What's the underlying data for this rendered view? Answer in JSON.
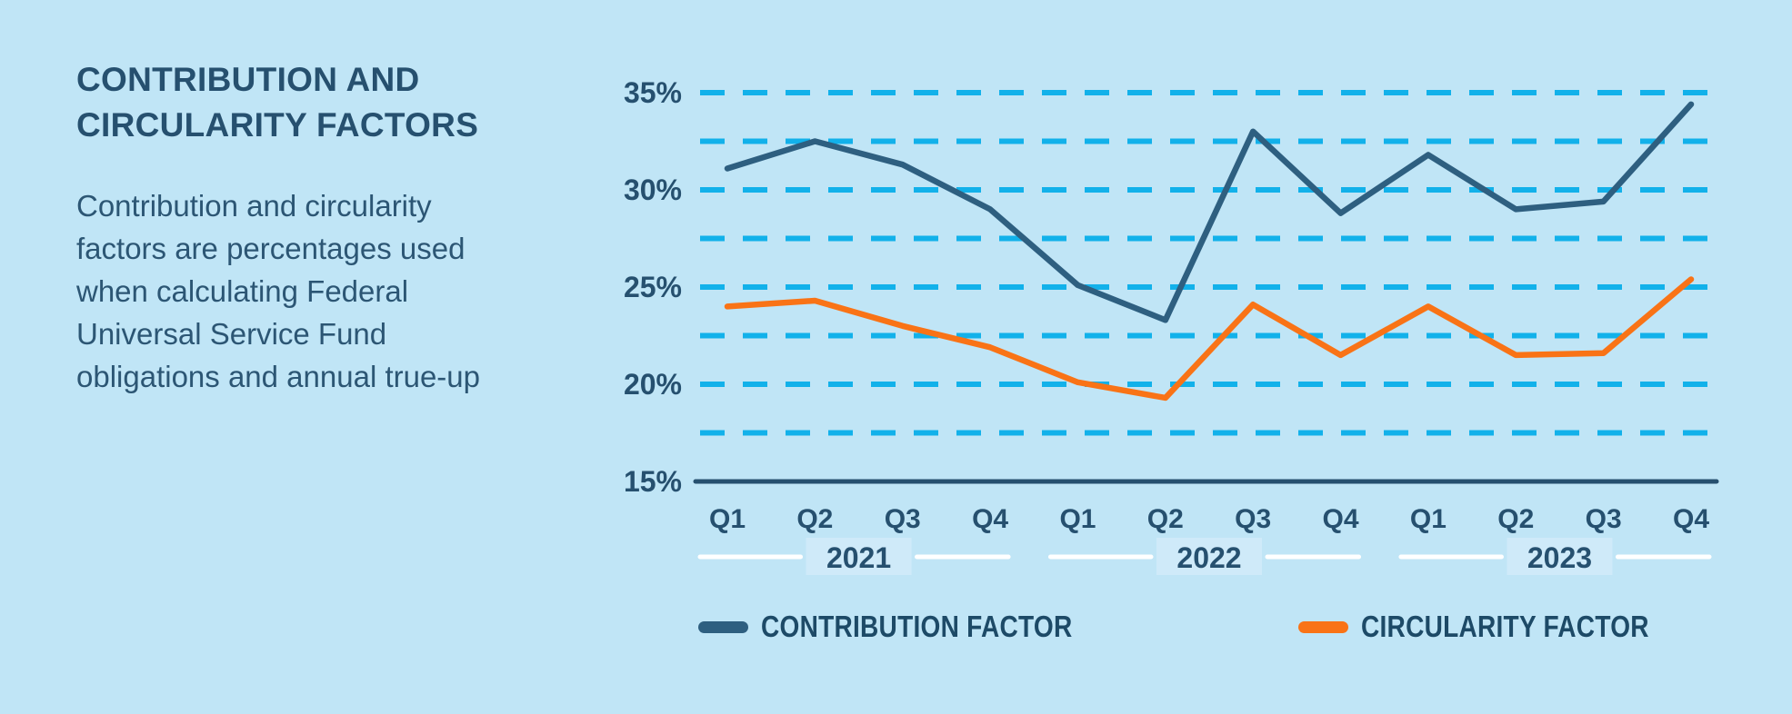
{
  "page": {
    "background": "#c0e5f6"
  },
  "panel": {
    "title_line1": "CONTRIBUTION AND",
    "title_line2": "CIRCULARITY FACTORS",
    "description_lines": [
      "Contribution and circularity",
      "factors are percentages used",
      "when calculating Federal",
      "Universal Service Fund",
      "obligations and annual true-up"
    ]
  },
  "chart_data": {
    "type": "line",
    "x_categories": [
      "Q1",
      "Q2",
      "Q3",
      "Q4",
      "Q1",
      "Q2",
      "Q3",
      "Q4",
      "Q1",
      "Q2",
      "Q3",
      "Q4"
    ],
    "year_groups": [
      "2021",
      "2022",
      "2023"
    ],
    "y_ticks": [
      "35%",
      "30%",
      "25%",
      "20%",
      "15%"
    ],
    "y_tick_values": [
      35,
      30,
      25,
      20,
      15
    ],
    "ylim": [
      15,
      35
    ],
    "gridline_values": [
      35,
      32.5,
      30,
      27.5,
      25,
      22.5,
      20,
      17.5
    ],
    "grid_style": "dashed",
    "grid_color": "#12B1EA",
    "axis_color": "#26506F",
    "year_divider_color": "#FFFFFF",
    "year_label_box_color": "#CFEAF9",
    "series": [
      {
        "name": "CONTRIBUTION FACTOR",
        "color": "#2E5F80",
        "values": [
          31.1,
          32.5,
          31.3,
          29.0,
          25.1,
          23.3,
          33.0,
          28.8,
          31.8,
          29.0,
          29.4,
          34.4
        ]
      },
      {
        "name": "CIRCULARITY FACTOR",
        "color": "#F97316",
        "values": [
          24.0,
          24.3,
          23.0,
          21.9,
          20.1,
          19.3,
          24.1,
          21.5,
          24.0,
          21.5,
          21.6,
          25.4
        ]
      }
    ]
  },
  "legend": {
    "items": [
      {
        "label": "CONTRIBUTION FACTOR",
        "color": "#2E5F80"
      },
      {
        "label": "CIRCULARITY FACTOR",
        "color": "#F97316"
      }
    ]
  }
}
